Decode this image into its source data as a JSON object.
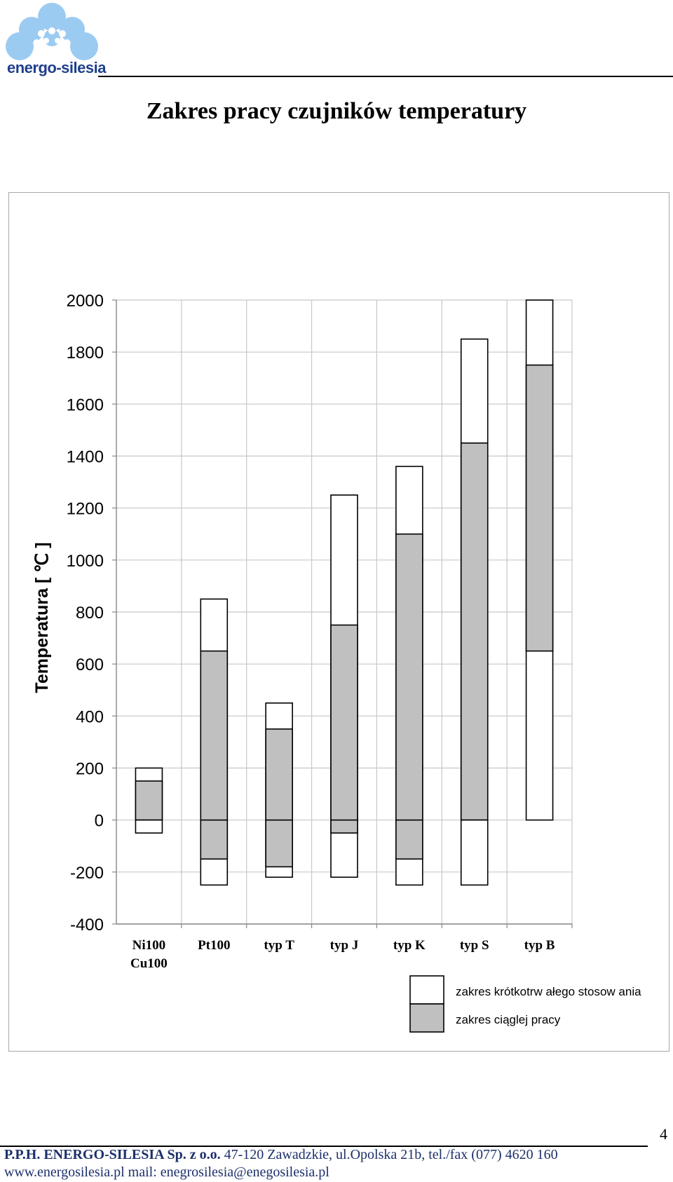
{
  "header": {
    "logo_text": "energo-silesia"
  },
  "page_title": "Zakres pracy czujników temperatury",
  "chart_data": {
    "type": "bar",
    "subtype": "floating-range-stacked",
    "title": "",
    "xlabel": "",
    "ylabel": "Temperatura  [ ℃ ]",
    "ylim": [
      -400,
      2000
    ],
    "y_ticks": [
      "2000",
      "1800",
      "1600",
      "1400",
      "1200",
      "1000",
      "800",
      "600",
      "400",
      "200",
      "0",
      "-200",
      "-400"
    ],
    "grid": true,
    "legend_position": "bottom-right",
    "categories": [
      {
        "lines": [
          "Ni100",
          "Cu100"
        ]
      },
      {
        "lines": [
          "Pt100"
        ]
      },
      {
        "lines": [
          "typ T"
        ]
      },
      {
        "lines": [
          "typ J"
        ]
      },
      {
        "lines": [
          "typ K"
        ]
      },
      {
        "lines": [
          "typ S"
        ]
      },
      {
        "lines": [
          "typ B"
        ]
      }
    ],
    "series": [
      {
        "name": "zakres krótkotrw ałego stosow ania",
        "color": "#ffffff",
        "ranges": [
          [
            -50,
            200
          ],
          [
            -250,
            850
          ],
          [
            -220,
            450
          ],
          [
            -220,
            1250
          ],
          [
            -250,
            1360
          ],
          [
            -250,
            1850
          ],
          [
            0,
            2000
          ]
        ]
      },
      {
        "name": "zakres ciąglej pracy",
        "color": "#c0c0c0",
        "ranges": [
          [
            0,
            150
          ],
          [
            -150,
            650
          ],
          [
            -180,
            350
          ],
          [
            -50,
            750
          ],
          [
            -150,
            1100
          ],
          [
            0,
            1450
          ],
          [
            650,
            1750
          ]
        ]
      }
    ],
    "legend": [
      {
        "label": "zakres krótkotrw ałego stosow ania",
        "color": "#ffffff"
      },
      {
        "label": "zakres ciąglej pracy",
        "color": "#c0c0c0"
      }
    ]
  },
  "footer": {
    "company": "P.P.H. ENERGO-SILESIA Sp. z o.o.",
    "address": "  47-120 Zawadzkie, ul.Opolska 21b, tel./fax (077) 4620 160",
    "website": "www.energosilesia.pl",
    "mail": "  mail: enegrosilesia@enegosilesia.pl",
    "page_number": "4"
  },
  "colors": {
    "logo_blue": "#1f3f8c",
    "logo_bubbles": "#9ccbf2",
    "footer_text": "#1c2f6b",
    "grid": "#c8c8c8",
    "range_fill": "#c0c0c0"
  }
}
